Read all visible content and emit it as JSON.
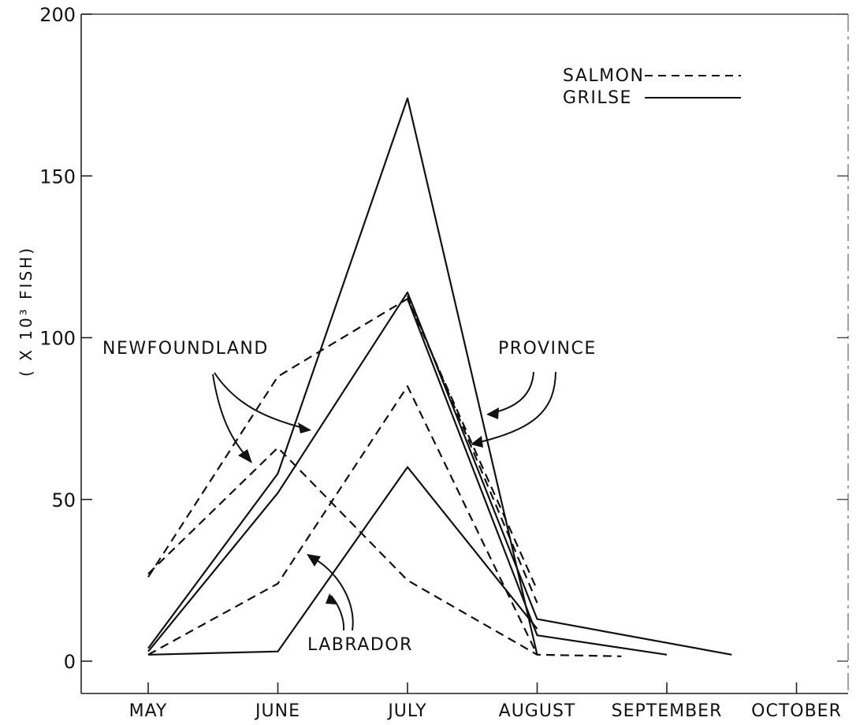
{
  "chart_data": {
    "type": "line",
    "title": "",
    "xlabel": "",
    "ylabel": "( X 10³ FISH)",
    "categories": [
      "MAY",
      "JUNE",
      "JULY",
      "AUGUST",
      "SEPTEMBER",
      "OCTOBER"
    ],
    "y_ticks": [
      "0",
      "50",
      "100",
      "150",
      "200"
    ],
    "ylim": [
      0,
      200
    ],
    "legend": {
      "position": "top-right",
      "entries": [
        {
          "label": "SALMON",
          "style": "dashed"
        },
        {
          "label": "GRILSE",
          "style": "solid"
        }
      ]
    },
    "series": [
      {
        "group": "NEWFOUNDLAND",
        "kind": "salmon",
        "style": "dashed",
        "points": [
          [
            0,
            26
          ],
          [
            1,
            88
          ],
          [
            2,
            112
          ],
          [
            3,
            22
          ]
        ]
      },
      {
        "group": "NEWFOUNDLAND",
        "kind": "salmon",
        "style": "dashed",
        "points": [
          [
            0,
            27
          ],
          [
            1,
            66
          ],
          [
            2,
            25
          ],
          [
            3,
            2
          ],
          [
            3.65,
            1.5
          ]
        ]
      },
      {
        "group": "NEWFOUNDLAND",
        "kind": "grilse",
        "style": "solid",
        "points": [
          [
            0,
            4
          ],
          [
            1,
            58
          ],
          [
            2,
            174
          ],
          [
            3,
            2
          ]
        ]
      },
      {
        "group": "NEWFOUNDLAND",
        "kind": "grilse",
        "style": "solid",
        "points": [
          [
            0,
            3
          ],
          [
            1,
            52
          ],
          [
            2,
            114
          ],
          [
            3,
            13
          ],
          [
            4.5,
            2
          ]
        ]
      },
      {
        "group": "PROVINCE",
        "kind": "salmon",
        "style": "dashed",
        "points": [
          [
            2,
            113
          ],
          [
            3,
            18
          ]
        ]
      },
      {
        "group": "PROVINCE",
        "kind": "grilse",
        "style": "solid",
        "points": [
          [
            2,
            112
          ],
          [
            3,
            8
          ],
          [
            4,
            2
          ]
        ]
      },
      {
        "group": "LABRADOR",
        "kind": "salmon",
        "style": "dashed",
        "points": [
          [
            0,
            2
          ],
          [
            1,
            24
          ],
          [
            2,
            85
          ],
          [
            3,
            2
          ]
        ]
      },
      {
        "group": "LABRADOR",
        "kind": "grilse",
        "style": "solid",
        "points": [
          [
            0,
            2
          ],
          [
            1,
            3
          ],
          [
            2,
            60
          ],
          [
            3,
            10
          ]
        ]
      }
    ],
    "annotations": [
      "NEWFOUNDLAND",
      "PROVINCE",
      "LABRADOR"
    ],
    "grid": false
  }
}
